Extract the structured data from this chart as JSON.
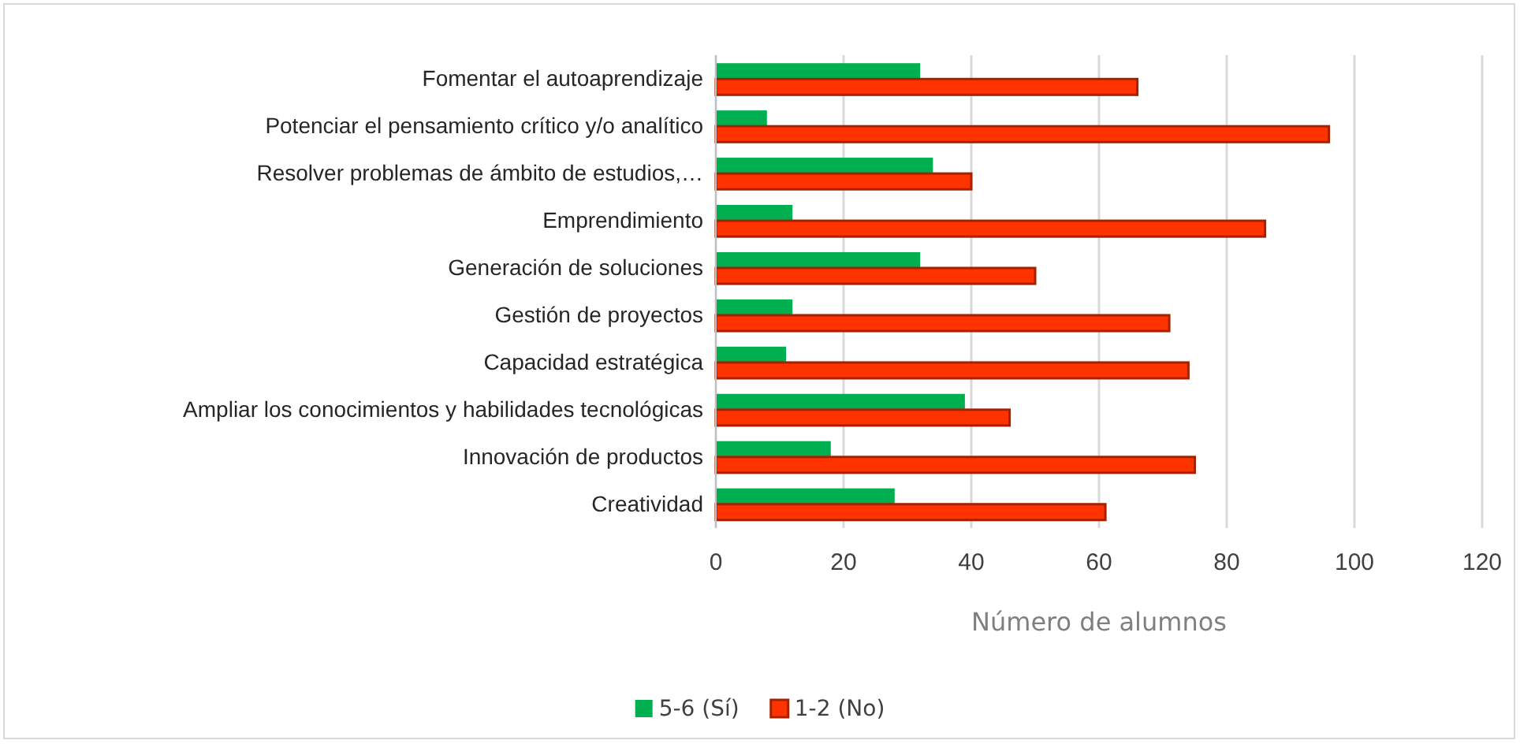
{
  "chart_data": {
    "type": "bar",
    "orientation": "horizontal",
    "xlabel": "Número de alumnos",
    "categories": [
      "Fomentar el autoaprendizaje",
      "Potenciar el pensamiento crítico y/o analítico",
      "Resolver problemas de ámbito de estudios,…",
      "Emprendimiento",
      "Generación de soluciones",
      "Gestión de proyectos",
      "Capacidad estratégica",
      "Ampliar los conocimientos y habilidades tecnológicas",
      "Innovación de productos",
      "Creatividad"
    ],
    "series": [
      {
        "name": "5-6 (Sí)",
        "color": "#00b050",
        "values": [
          32,
          8,
          34,
          12,
          32,
          12,
          11,
          39,
          18,
          28
        ]
      },
      {
        "name": "1-2 (No)",
        "color": "#ff3300",
        "values": [
          66,
          96,
          40,
          86,
          50,
          71,
          74,
          46,
          75,
          61
        ]
      }
    ],
    "xlim": [
      0,
      120
    ],
    "xticks": [
      0,
      20,
      40,
      60,
      80,
      100,
      120
    ],
    "grid": "x",
    "legend": "bottom"
  }
}
